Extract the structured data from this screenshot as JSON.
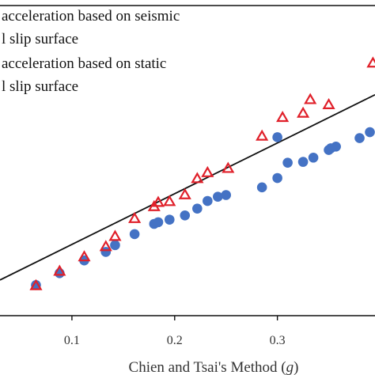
{
  "chart_data": {
    "type": "scatter",
    "xlabel": "Chien and Tsai's Method (",
    "xlabel_var": "g",
    "xlabel_close": ")",
    "ylabel": "",
    "title": "",
    "x_ticks": [
      0.1,
      0.2,
      0.3
    ],
    "x_tick_labels": [
      "0.1",
      "0.2",
      "0.3"
    ],
    "xlim": [
      0.03,
      0.395
    ],
    "ylim": [
      0.03,
      0.395
    ],
    "grid": false,
    "legend": {
      "placement": "top-left",
      "lines": [
        "acceleration based on seismic",
        "l slip surface",
        "acceleration based on static",
        "l slip surface"
      ]
    },
    "series": [
      {
        "marker": "triangle-open",
        "color": "#e0202a",
        "x": [
          0.065,
          0.088,
          0.112,
          0.133,
          0.142,
          0.161,
          0.18,
          0.184,
          0.195,
          0.21,
          0.222,
          0.232,
          0.252,
          0.285,
          0.305,
          0.325,
          0.332,
          0.35,
          0.393
        ],
        "y": [
          0.065,
          0.082,
          0.099,
          0.111,
          0.123,
          0.144,
          0.158,
          0.163,
          0.164,
          0.172,
          0.191,
          0.198,
          0.203,
          0.241,
          0.263,
          0.268,
          0.284,
          0.278,
          0.327
        ]
      },
      {
        "marker": "circle-filled",
        "color": "#4472c4",
        "x": [
          0.065,
          0.088,
          0.112,
          0.133,
          0.142,
          0.161,
          0.18,
          0.184,
          0.195,
          0.21,
          0.222,
          0.232,
          0.242,
          0.25,
          0.285,
          0.3,
          0.3,
          0.31,
          0.325,
          0.335,
          0.35,
          0.352,
          0.357,
          0.38,
          0.39
        ],
        "y": [
          0.066,
          0.08,
          0.095,
          0.105,
          0.113,
          0.126,
          0.138,
          0.14,
          0.143,
          0.148,
          0.156,
          0.165,
          0.17,
          0.172,
          0.181,
          0.192,
          0.24,
          0.21,
          0.211,
          0.216,
          0.225,
          0.227,
          0.229,
          0.239,
          0.246
        ]
      },
      {
        "marker": "line",
        "color": "#111111",
        "x": [
          0.03,
          0.395
        ],
        "y": [
          0.072,
          0.29
        ]
      }
    ]
  }
}
